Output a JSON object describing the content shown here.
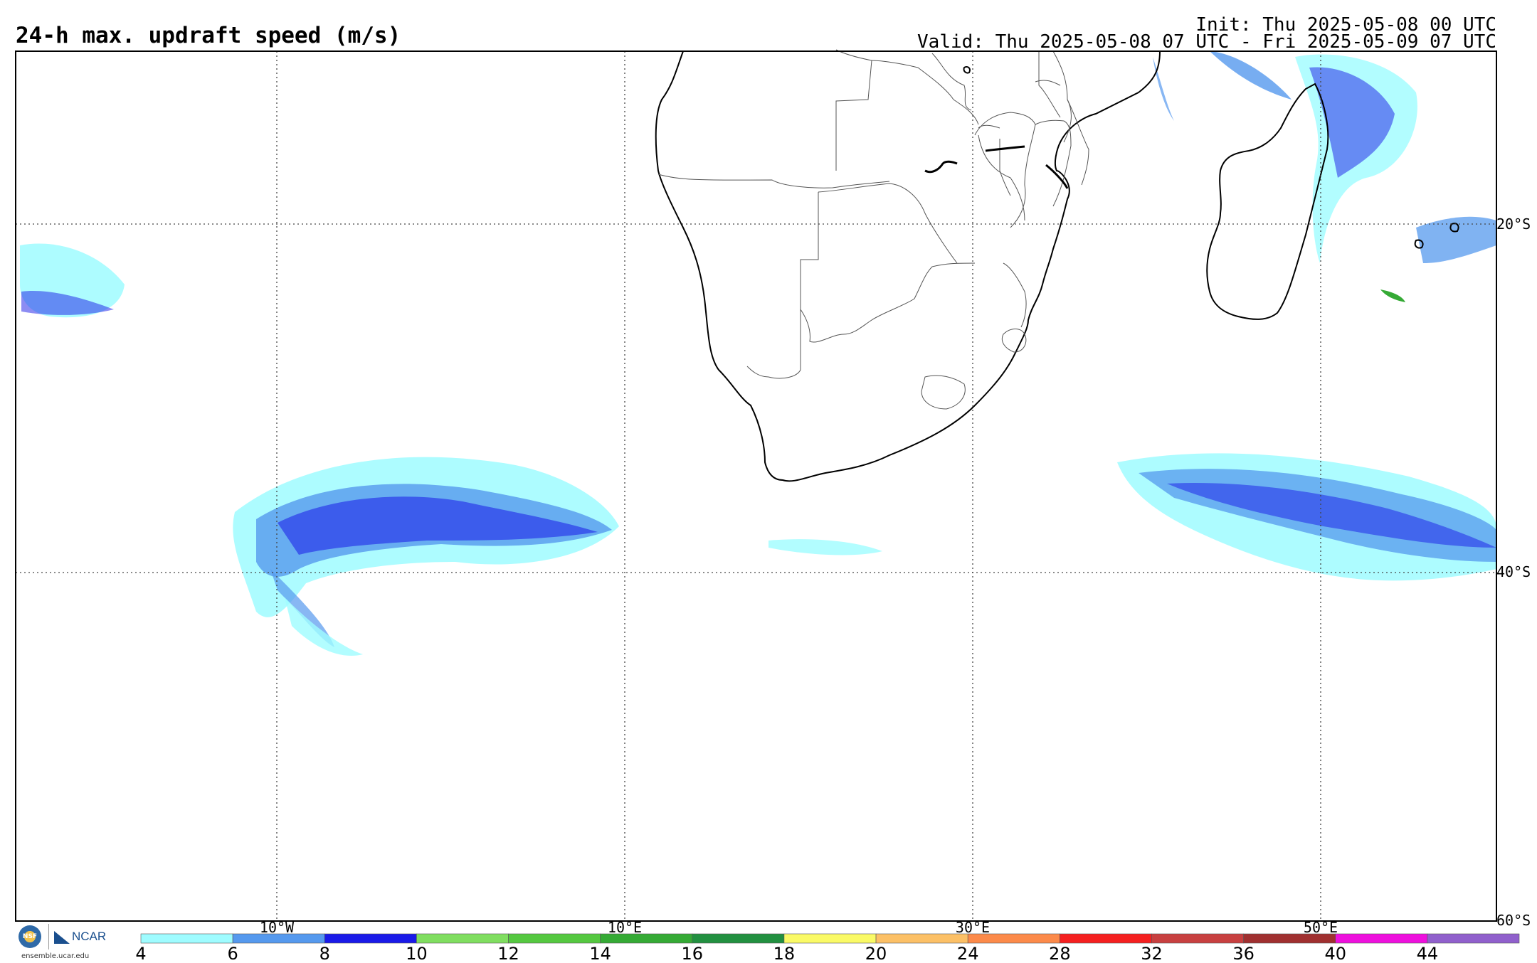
{
  "header": {
    "title": "24-h max. updraft speed (m/s)",
    "init": "Init: Thu 2025-05-08 00 UTC",
    "valid": "Valid: Thu 2025-05-08 07 UTC - Fri 2025-05-09 07 UTC"
  },
  "map": {
    "lon_labels": [
      "10°W",
      "10°E",
      "30°E",
      "50°E"
    ],
    "lat_labels": [
      "20°S",
      "40°S",
      "60°S"
    ]
  },
  "colorbar": {
    "ticks": [
      "4",
      "6",
      "8",
      "10",
      "12",
      "14",
      "16",
      "18",
      "20",
      "24",
      "28",
      "32",
      "36",
      "40",
      "44"
    ],
    "colors": [
      "#9ffcff",
      "#5599ee",
      "#1a1ae8",
      "#80de60",
      "#55c840",
      "#35aa35",
      "#229040",
      "#fafa66",
      "#fcc066",
      "#fc8a4a",
      "#f52020",
      "#c84040",
      "#a03030",
      "#ee10dd",
      "#9060cc"
    ]
  },
  "logos": {
    "nsf": "NSF",
    "ncar": "NCAR",
    "url": "ensemble.ucar.edu"
  }
}
